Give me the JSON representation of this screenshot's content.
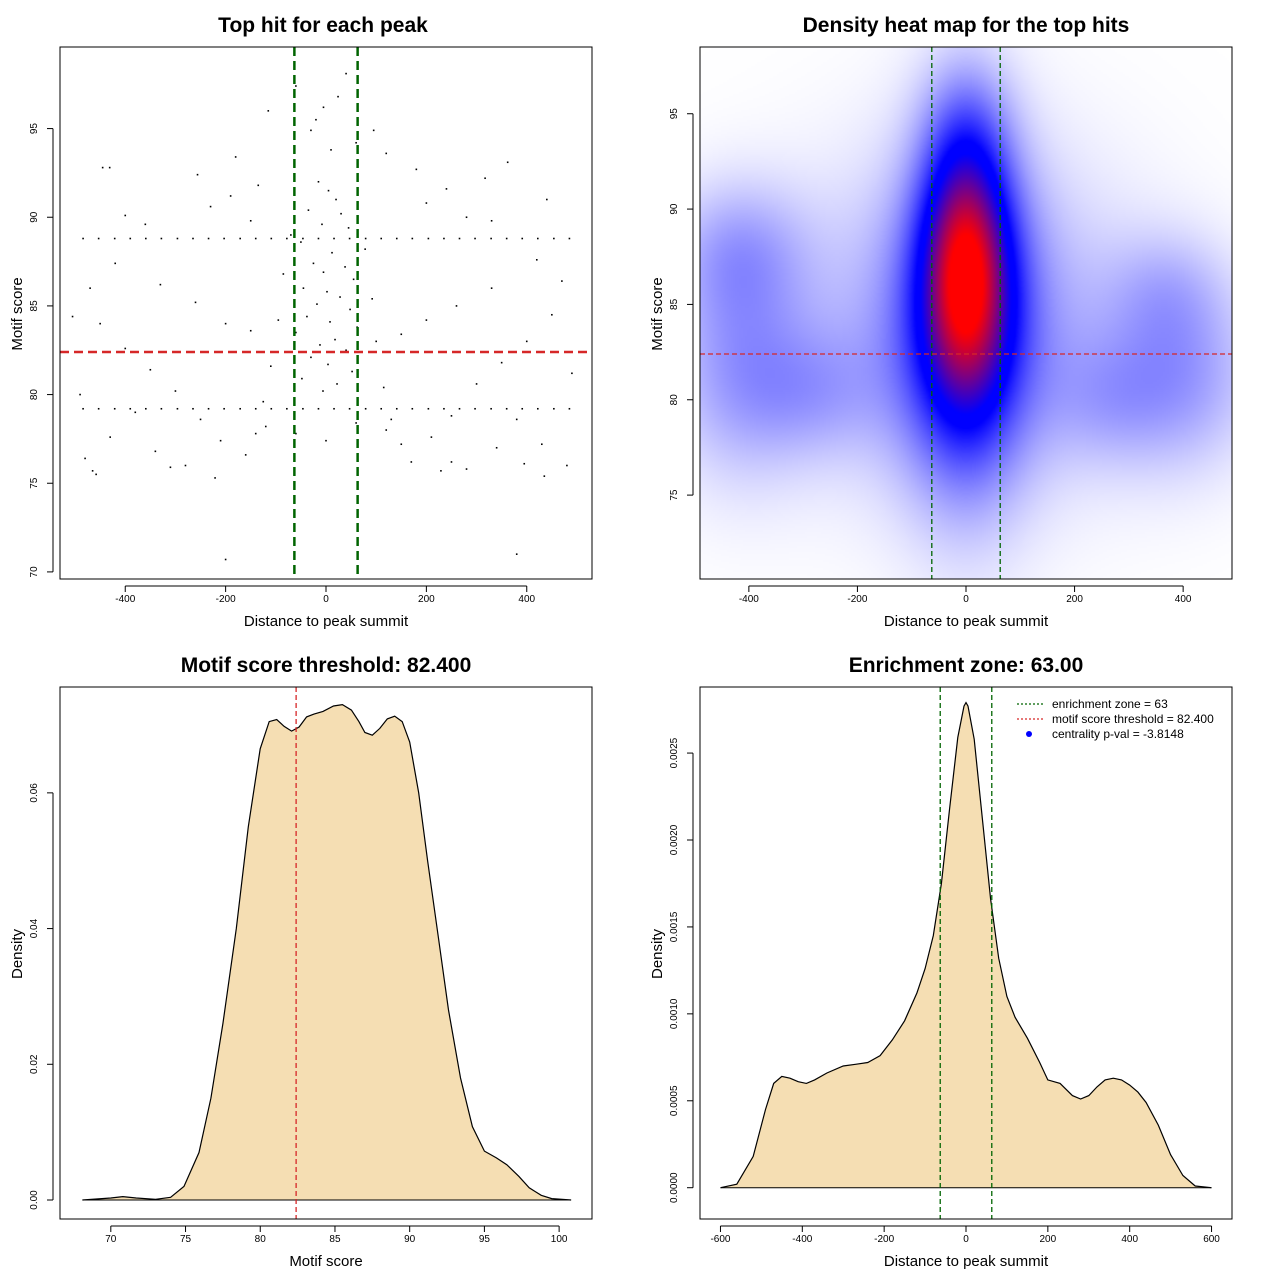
{
  "chart_data": [
    {
      "id": "scatter",
      "type": "scatter",
      "title": "Top hit for each peak",
      "xlabel": "Distance to peak summit",
      "ylabel": "Motif score",
      "xlim": [
        -530,
        530
      ],
      "ylim": [
        69.6,
        99.6
      ],
      "xticks": [
        -400,
        -200,
        0,
        200,
        400
      ],
      "yticks": [
        70,
        75,
        80,
        85,
        90,
        95
      ],
      "vlines": [
        -63,
        63
      ],
      "hline": 82.4,
      "point_color": "#000000",
      "vline_color": "#006400",
      "hline_color": "#d62728",
      "points": [
        [
          -484,
          88.8
        ],
        [
          -453,
          88.8
        ],
        [
          -421,
          88.8
        ],
        [
          -390,
          88.8
        ],
        [
          -359,
          88.8
        ],
        [
          -328,
          88.8
        ],
        [
          -296,
          88.8
        ],
        [
          -265,
          88.8
        ],
        [
          -234,
          88.8
        ],
        [
          -203,
          88.8
        ],
        [
          -171,
          88.8
        ],
        [
          -140,
          88.8
        ],
        [
          -109,
          88.8
        ],
        [
          -78,
          88.8
        ],
        [
          -46,
          88.8
        ],
        [
          -15,
          88.8
        ],
        [
          16,
          88.8
        ],
        [
          47,
          88.8
        ],
        [
          79,
          88.8
        ],
        [
          110,
          88.8
        ],
        [
          141,
          88.8
        ],
        [
          172,
          88.8
        ],
        [
          204,
          88.8
        ],
        [
          235,
          88.8
        ],
        [
          266,
          88.8
        ],
        [
          297,
          88.8
        ],
        [
          329,
          88.8
        ],
        [
          360,
          88.8
        ],
        [
          391,
          88.8
        ],
        [
          422,
          88.8
        ],
        [
          454,
          88.8
        ],
        [
          485,
          88.8
        ],
        [
          -484,
          79.2
        ],
        [
          -453,
          79.2
        ],
        [
          -421,
          79.2
        ],
        [
          -390,
          79.2
        ],
        [
          -359,
          79.2
        ],
        [
          -328,
          79.2
        ],
        [
          -296,
          79.2
        ],
        [
          -265,
          79.2
        ],
        [
          -234,
          79.2
        ],
        [
          -203,
          79.2
        ],
        [
          -171,
          79.2
        ],
        [
          -140,
          79.2
        ],
        [
          -109,
          79.2
        ],
        [
          -78,
          79.2
        ],
        [
          -46,
          79.2
        ],
        [
          -15,
          79.2
        ],
        [
          16,
          79.2
        ],
        [
          47,
          79.2
        ],
        [
          79,
          79.2
        ],
        [
          110,
          79.2
        ],
        [
          141,
          79.2
        ],
        [
          172,
          79.2
        ],
        [
          204,
          79.2
        ],
        [
          235,
          79.2
        ],
        [
          266,
          79.2
        ],
        [
          297,
          79.2
        ],
        [
          329,
          79.2
        ],
        [
          360,
          79.2
        ],
        [
          391,
          79.2
        ],
        [
          422,
          79.2
        ],
        [
          454,
          79.2
        ],
        [
          485,
          79.2
        ],
        [
          -221,
          75.3
        ],
        [
          -200,
          70.7
        ],
        [
          380,
          71.0
        ],
        [
          -5,
          96.2
        ],
        [
          24,
          96.8
        ],
        [
          40,
          98.1
        ],
        [
          -30,
          94.9
        ],
        [
          60,
          94.2
        ],
        [
          95,
          94.9
        ],
        [
          -115,
          96.0
        ],
        [
          -60,
          97.4
        ],
        [
          120,
          93.6
        ],
        [
          180,
          92.7
        ],
        [
          -180,
          93.4
        ],
        [
          -445,
          92.8
        ],
        [
          -431,
          92.8
        ],
        [
          317,
          92.2
        ],
        [
          362,
          93.1
        ],
        [
          440,
          91.0
        ],
        [
          -256,
          92.4
        ],
        [
          -20,
          95.5
        ],
        [
          10,
          93.8
        ],
        [
          -15,
          92.0
        ],
        [
          5,
          91.5
        ],
        [
          20,
          91.0
        ],
        [
          -35,
          90.4
        ],
        [
          30,
          90.2
        ],
        [
          -8,
          89.6
        ],
        [
          45,
          89.4
        ],
        [
          -50,
          88.6
        ],
        [
          12,
          88.0
        ],
        [
          -25,
          87.4
        ],
        [
          38,
          87.2
        ],
        [
          -5,
          86.9
        ],
        [
          55,
          86.5
        ],
        [
          -45,
          86.0
        ],
        [
          2,
          85.8
        ],
        [
          28,
          85.5
        ],
        [
          -18,
          85.1
        ],
        [
          48,
          84.8
        ],
        [
          -38,
          84.4
        ],
        [
          8,
          84.1
        ],
        [
          62,
          83.8
        ],
        [
          -60,
          83.5
        ],
        [
          18,
          83.1
        ],
        [
          -12,
          82.8
        ],
        [
          40,
          82.5
        ],
        [
          -30,
          82.1
        ],
        [
          4,
          81.7
        ],
        [
          52,
          81.3
        ],
        [
          -48,
          80.9
        ],
        [
          22,
          80.6
        ],
        [
          -6,
          80.2
        ],
        [
          -70,
          89.0
        ],
        [
          78,
          88.2
        ],
        [
          -85,
          86.8
        ],
        [
          92,
          85.4
        ],
        [
          -95,
          84.2
        ],
        [
          100,
          83.0
        ],
        [
          -110,
          81.6
        ],
        [
          115,
          80.4
        ],
        [
          -125,
          79.6
        ],
        [
          130,
          78.6
        ],
        [
          -140,
          77.8
        ],
        [
          150,
          77.2
        ],
        [
          -160,
          76.6
        ],
        [
          170,
          76.2
        ],
        [
          -250,
          78.6
        ],
        [
          250,
          78.8
        ],
        [
          -300,
          80.2
        ],
        [
          300,
          80.6
        ],
        [
          -350,
          81.4
        ],
        [
          350,
          81.8
        ],
        [
          -400,
          82.6
        ],
        [
          400,
          83.0
        ],
        [
          -450,
          84.0
        ],
        [
          450,
          84.5
        ],
        [
          -470,
          86.0
        ],
        [
          470,
          86.4
        ],
        [
          -420,
          87.4
        ],
        [
          420,
          87.6
        ],
        [
          -330,
          86.2
        ],
        [
          330,
          86.0
        ],
        [
          -260,
          85.2
        ],
        [
          260,
          85.0
        ],
        [
          -200,
          84.0
        ],
        [
          200,
          84.2
        ],
        [
          -150,
          83.6
        ],
        [
          150,
          83.4
        ],
        [
          -380,
          79.0
        ],
        [
          380,
          78.6
        ],
        [
          -430,
          77.6
        ],
        [
          430,
          77.2
        ],
        [
          -480,
          76.4
        ],
        [
          480,
          76.0
        ],
        [
          -340,
          76.8
        ],
        [
          340,
          77.0
        ],
        [
          -280,
          76.0
        ],
        [
          280,
          75.8
        ],
        [
          -210,
          77.4
        ],
        [
          210,
          77.6
        ],
        [
          -120,
          78.2
        ],
        [
          120,
          78.0
        ],
        [
          -60,
          77.8
        ],
        [
          60,
          78.4
        ],
        [
          0,
          77.4
        ],
        [
          -465,
          75.7
        ],
        [
          -458,
          75.5
        ],
        [
          -310,
          75.9
        ],
        [
          229,
          75.7
        ],
        [
          250,
          76.2
        ],
        [
          395,
          76.1
        ],
        [
          435,
          75.4
        ],
        [
          490,
          81.2
        ],
        [
          -490,
          80.0
        ],
        [
          -400,
          90.1
        ],
        [
          -360,
          89.6
        ],
        [
          -230,
          90.6
        ],
        [
          -190,
          91.2
        ],
        [
          -150,
          89.8
        ],
        [
          -135,
          91.8
        ],
        [
          200,
          90.8
        ],
        [
          240,
          91.6
        ],
        [
          280,
          90.0
        ],
        [
          330,
          89.8
        ],
        [
          -505,
          84.4
        ]
      ]
    },
    {
      "id": "heatmap",
      "type": "heatmap",
      "title": "Density heat map for the top hits",
      "xlabel": "Distance to peak summit",
      "ylabel": "Motif score",
      "xlim": [
        -490,
        490
      ],
      "ylim": [
        70.6,
        98.5
      ],
      "xticks": [
        -400,
        -200,
        0,
        200,
        400
      ],
      "yticks": [
        75,
        80,
        85,
        90,
        95
      ],
      "vlines": [
        -63,
        63
      ],
      "hline": 82.4,
      "low_color": "#ffffff",
      "mid_color": "#0000ff",
      "high_color": "#ff0000",
      "vline_color": "#006400",
      "hline_color": "#d62728",
      "kernels": [
        {
          "x": 0,
          "y": 87.2,
          "sx": 55,
          "sy": 4.8,
          "w": 1.0
        },
        {
          "x": 0,
          "y": 83.8,
          "sx": 85,
          "sy": 6.2,
          "w": 0.55
        },
        {
          "x": 0,
          "y": 84.0,
          "sx": 210,
          "sy": 6.0,
          "w": 0.28
        },
        {
          "x": -420,
          "y": 87.8,
          "sx": 90,
          "sy": 2.6,
          "w": 0.22
        },
        {
          "x": -420,
          "y": 81.8,
          "sx": 95,
          "sy": 4.2,
          "w": 0.26
        },
        {
          "x": 400,
          "y": 81.2,
          "sx": 95,
          "sy": 3.4,
          "w": 0.26
        },
        {
          "x": 370,
          "y": 85.8,
          "sx": 80,
          "sy": 2.2,
          "w": 0.14
        },
        {
          "x": -280,
          "y": 80.4,
          "sx": 90,
          "sy": 2.4,
          "w": 0.16
        },
        {
          "x": 260,
          "y": 80.0,
          "sx": 80,
          "sy": 2.4,
          "w": 0.14
        },
        {
          "x": 0,
          "y": 94.5,
          "sx": 60,
          "sy": 2.6,
          "w": 0.12
        }
      ]
    },
    {
      "id": "scoredensity",
      "type": "area",
      "title": "Motif score threshold: 82.400",
      "xlabel": "Motif score",
      "ylabel": "Density",
      "xlim": [
        66.6,
        102.2
      ],
      "ylim": [
        -0.0028,
        0.0756
      ],
      "xticks": [
        70,
        75,
        80,
        85,
        90,
        95,
        100
      ],
      "yticks": [
        0.0,
        0.02,
        0.04,
        0.06
      ],
      "ytick_labels": [
        "0.00",
        "0.02",
        "0.04",
        "0.06"
      ],
      "vlines": [
        82.4
      ],
      "fill_color": "#f5deb3",
      "line_color": "#000000",
      "vline_color": "#d62728",
      "x": [
        68.1,
        70.0,
        70.8,
        71.7,
        73.0,
        74.0,
        74.9,
        75.9,
        76.7,
        77.5,
        78.4,
        79.2,
        80.0,
        80.6,
        81.1,
        81.6,
        82.1,
        82.6,
        83.1,
        83.6,
        84.2,
        84.9,
        85.5,
        86.1,
        86.6,
        87.0,
        87.5,
        88.0,
        88.5,
        89.0,
        89.5,
        90.0,
        90.6,
        91.2,
        91.9,
        92.6,
        93.4,
        94.2,
        95.0,
        95.8,
        96.5,
        97.3,
        98.0,
        98.8,
        99.5,
        100.8
      ],
      "y": [
        0.0,
        0.0003,
        0.0005,
        0.0003,
        0.0001,
        0.0004,
        0.002,
        0.007,
        0.015,
        0.026,
        0.04,
        0.055,
        0.0665,
        0.0705,
        0.0708,
        0.0698,
        0.0691,
        0.0697,
        0.0712,
        0.0716,
        0.072,
        0.0728,
        0.073,
        0.0722,
        0.0705,
        0.0689,
        0.0685,
        0.0695,
        0.0709,
        0.0713,
        0.0705,
        0.0675,
        0.06,
        0.05,
        0.039,
        0.028,
        0.018,
        0.0108,
        0.0072,
        0.0062,
        0.0052,
        0.0035,
        0.0018,
        0.0007,
        0.0002,
        0.0
      ]
    },
    {
      "id": "distdensity",
      "type": "area",
      "title": "Enrichment zone: 63.00",
      "xlabel": "Distance to peak summit",
      "ylabel": "Density",
      "xlim": [
        -650,
        650
      ],
      "ylim": [
        -0.00018,
        0.00288
      ],
      "xticks": [
        -600,
        -400,
        -200,
        0,
        200,
        400,
        600
      ],
      "yticks": [
        0.0,
        0.0005,
        0.001,
        0.0015,
        0.002,
        0.0025
      ],
      "ytick_labels": [
        "0.0000",
        "0.0005",
        "0.0010",
        "0.0015",
        "0.0020",
        "0.0025"
      ],
      "vlines": [
        -63,
        63
      ],
      "fill_color": "#f5deb3",
      "line_color": "#000000",
      "vline_color": "#006400",
      "x": [
        -600,
        -560,
        -520,
        -490,
        -470,
        -450,
        -430,
        -410,
        -390,
        -370,
        -340,
        -300,
        -270,
        -240,
        -210,
        -180,
        -150,
        -120,
        -100,
        -80,
        -60,
        -40,
        -20,
        -5,
        0,
        5,
        20,
        40,
        60,
        80,
        100,
        120,
        150,
        180,
        200,
        230,
        260,
        280,
        300,
        320,
        340,
        360,
        380,
        400,
        420,
        440,
        470,
        500,
        530,
        560,
        600
      ],
      "y": [
        0.0,
        2e-05,
        0.00018,
        0.00045,
        0.0006,
        0.00064,
        0.00063,
        0.00061,
        0.0006,
        0.00062,
        0.00066,
        0.0007,
        0.00071,
        0.00072,
        0.00076,
        0.00085,
        0.00096,
        0.00112,
        0.00126,
        0.00145,
        0.00175,
        0.00218,
        0.00259,
        0.00277,
        0.00279,
        0.00277,
        0.00258,
        0.00212,
        0.00166,
        0.00132,
        0.0011,
        0.00098,
        0.00086,
        0.00072,
        0.00062,
        0.0006,
        0.00053,
        0.00051,
        0.00053,
        0.00058,
        0.00062,
        0.00063,
        0.00062,
        0.00059,
        0.00055,
        0.00049,
        0.00036,
        0.00019,
        7e-05,
        1e-05,
        0.0
      ],
      "legend": [
        {
          "label": "enrichment zone = 63",
          "kind": "dotted-line",
          "color": "#006400"
        },
        {
          "label": "motif score threshold = 82.400",
          "kind": "dotted-line",
          "color": "#d62728"
        },
        {
          "label": "centrality p-val = -3.8148",
          "kind": "point",
          "color": "#0000ff"
        }
      ],
      "legend_position": "top-right"
    }
  ]
}
